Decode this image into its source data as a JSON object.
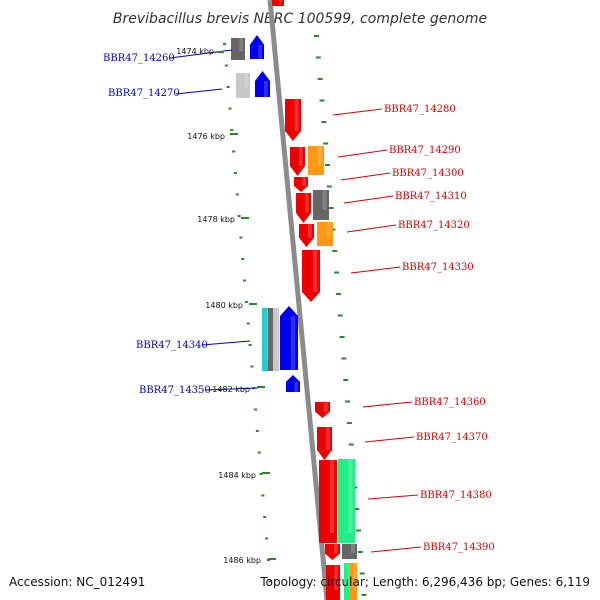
{
  "title": "Brevibacillus brevis NBRC 100599, complete genome",
  "accession": "Accession: NC_012491",
  "topology": "Topology: circular; Length: 6,296,436 bp; Genes: 6,119",
  "colors": {
    "backbone": "#8c8c8c",
    "tick": "#2a8a2a",
    "minus_label": "#0000c8",
    "plus_label": "#d40000",
    "red": "#ee0000",
    "blue": "#0000ee",
    "orange": "#ff9911",
    "gray": "#666666",
    "lightgray": "#c8c8c8",
    "cyan": "#22cccc",
    "green": "#22ee88"
  },
  "kbp_labels": [
    "1474 kbp",
    "1476 kbp",
    "1478 kbp",
    "1480 kbp",
    "1482 kbp",
    "1484 kbp",
    "1486 kbp"
  ],
  "minus_labels": [
    "BBR47_14260",
    "BBR47_14270",
    "BBR47_14340",
    "BBR47_14350"
  ],
  "plus_labels": [
    "BBR47_14280",
    "BBR47_14290",
    "BBR47_14300",
    "BBR47_14310",
    "BBR47_14320",
    "BBR47_14330",
    "BBR47_14360",
    "BBR47_14370",
    "BBR47_14380",
    "BBR47_14390"
  ]
}
